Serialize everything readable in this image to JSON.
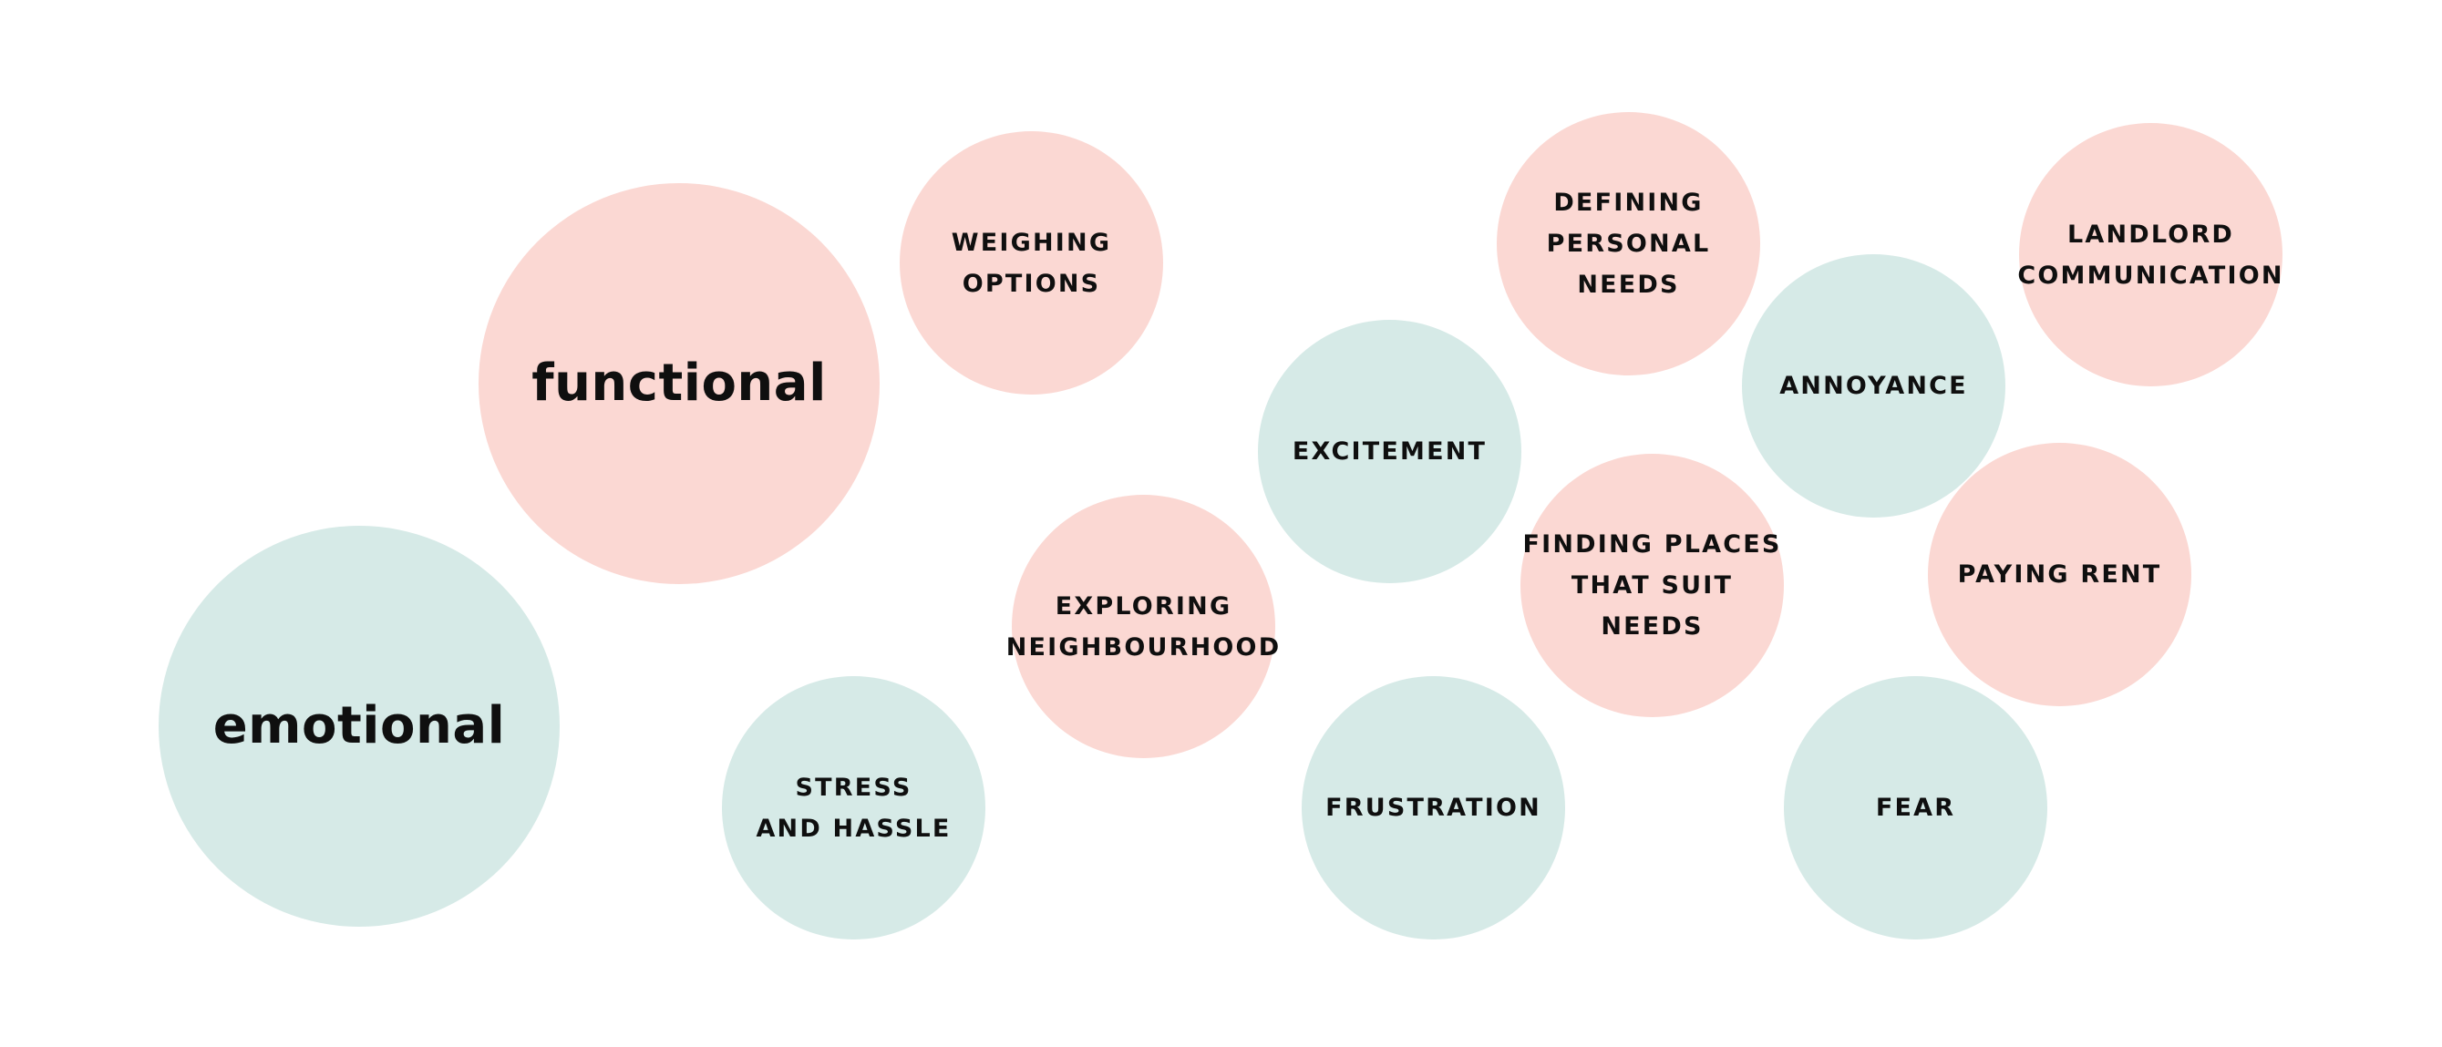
{
  "colors": {
    "functional": "#fbd8d3",
    "emotional": "#d6eae7"
  },
  "categories": {
    "functional": "functional",
    "emotional": "emotional"
  },
  "bubbles": {
    "weighing_options": "WEIGHING\nOPTIONS",
    "defining_personal_needs": "DEFINING\nPERSONAL NEEDS",
    "landlord_communication": "LANDLORD\nCOMMUNICATION",
    "annoyance": "ANNOYANCE",
    "excitement": "EXCITEMENT",
    "exploring_neighbourhood": "EXPLORING\nNEIGHBOURHOOD",
    "finding_places": "FINDING PLACES\nTHAT SUIT NEEDS",
    "paying_rent": "PAYING RENT",
    "stress_and_hassle": "STRESS\nAND HASSLE",
    "frustration": "FRUSTRATION",
    "fear": "FEAR"
  }
}
